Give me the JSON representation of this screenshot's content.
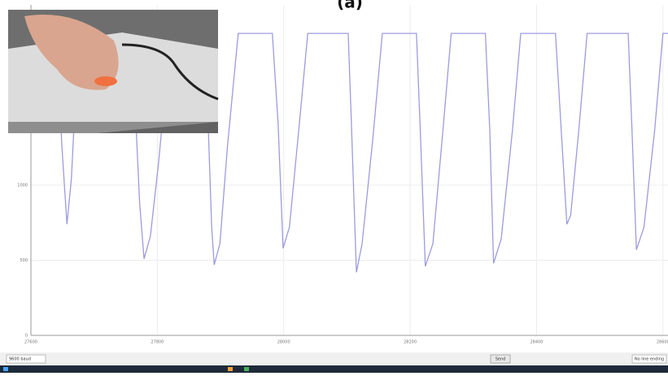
{
  "title": "(a)",
  "chart_data": {
    "type": "line",
    "x": [
      27628,
      27641,
      27649,
      27657,
      27664,
      27673,
      27680,
      27751,
      27763,
      27772,
      27779,
      27789,
      27802,
      27821,
      27866,
      27879,
      27886,
      27890,
      27899,
      27911,
      27928,
      27982,
      27991,
      27999,
      28009,
      28025,
      28038,
      28102,
      28107,
      28115,
      28124,
      28141,
      28156,
      28210,
      28216,
      28224,
      28236,
      28252,
      28265,
      28319,
      28326,
      28332,
      28344,
      28362,
      28375,
      28430,
      28439,
      28448,
      28454,
      28467,
      28480,
      28545,
      28551,
      28558,
      28570,
      28587,
      28600,
      28608
    ],
    "series": [
      {
        "color": "#9b9be0",
        "values": [
          2010,
          1910,
          1260,
          740,
          1040,
          1800,
          2010,
          2010,
          1700,
          880,
          510,
          660,
          1150,
          2010,
          2010,
          1580,
          720,
          470,
          610,
          1260,
          2010,
          2010,
          1420,
          580,
          720,
          1420,
          2010,
          2010,
          1420,
          420,
          610,
          1310,
          2010,
          2010,
          1370,
          460,
          610,
          1370,
          2010,
          2010,
          1370,
          480,
          640,
          1370,
          2010,
          2010,
          1370,
          740,
          800,
          1370,
          2010,
          2010,
          1370,
          570,
          720,
          1370,
          2010,
          2010
        ]
      }
    ],
    "xlim": [
      27600,
      28608
    ],
    "ylim": [
      0,
      2200
    ],
    "xticks": [
      27600,
      27800,
      28000,
      28200,
      28400,
      28600
    ],
    "yticks": [
      0,
      500,
      1000
    ],
    "grid": true
  },
  "footer": {
    "baud": "9600 baud",
    "send": "Send",
    "line_ending": "No line ending"
  }
}
